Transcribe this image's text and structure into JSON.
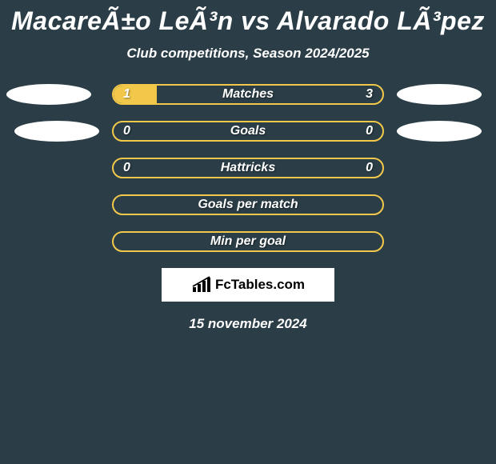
{
  "header": {
    "title": "MacareÃ±o LeÃ³n vs Alvarado LÃ³pez",
    "subtitle": "Club competitions, Season 2024/2025"
  },
  "rows": [
    {
      "label": "Matches",
      "left_value": "1",
      "right_value": "3",
      "fill_pct": 16,
      "fill_color": "#f2c84b",
      "border_color": "#f2c84b",
      "show_left_ellipse": true,
      "show_right_ellipse": true
    },
    {
      "label": "Goals",
      "left_value": "0",
      "right_value": "0",
      "fill_pct": 0,
      "fill_color": "#f2c84b",
      "border_color": "#f2c84b",
      "show_left_ellipse": true,
      "show_right_ellipse": true
    },
    {
      "label": "Hattricks",
      "left_value": "0",
      "right_value": "0",
      "fill_pct": 0,
      "fill_color": "#f2c84b",
      "border_color": "#f2c84b",
      "show_left_ellipse": false,
      "show_right_ellipse": false
    },
    {
      "label": "Goals per match",
      "left_value": "",
      "right_value": "",
      "fill_pct": 0,
      "fill_color": "#f2c84b",
      "border_color": "#f2c84b",
      "show_left_ellipse": false,
      "show_right_ellipse": false
    },
    {
      "label": "Min per goal",
      "left_value": "",
      "right_value": "",
      "fill_pct": 0,
      "fill_color": "#f2c84b",
      "border_color": "#f2c84b",
      "show_left_ellipse": false,
      "show_right_ellipse": false
    }
  ],
  "footer": {
    "logo_text": "FcTables.com",
    "date": "15 november 2024"
  },
  "style": {
    "background": "#2b3e47",
    "ellipse_color": "#ffffff",
    "text_color": "#ffffff"
  }
}
